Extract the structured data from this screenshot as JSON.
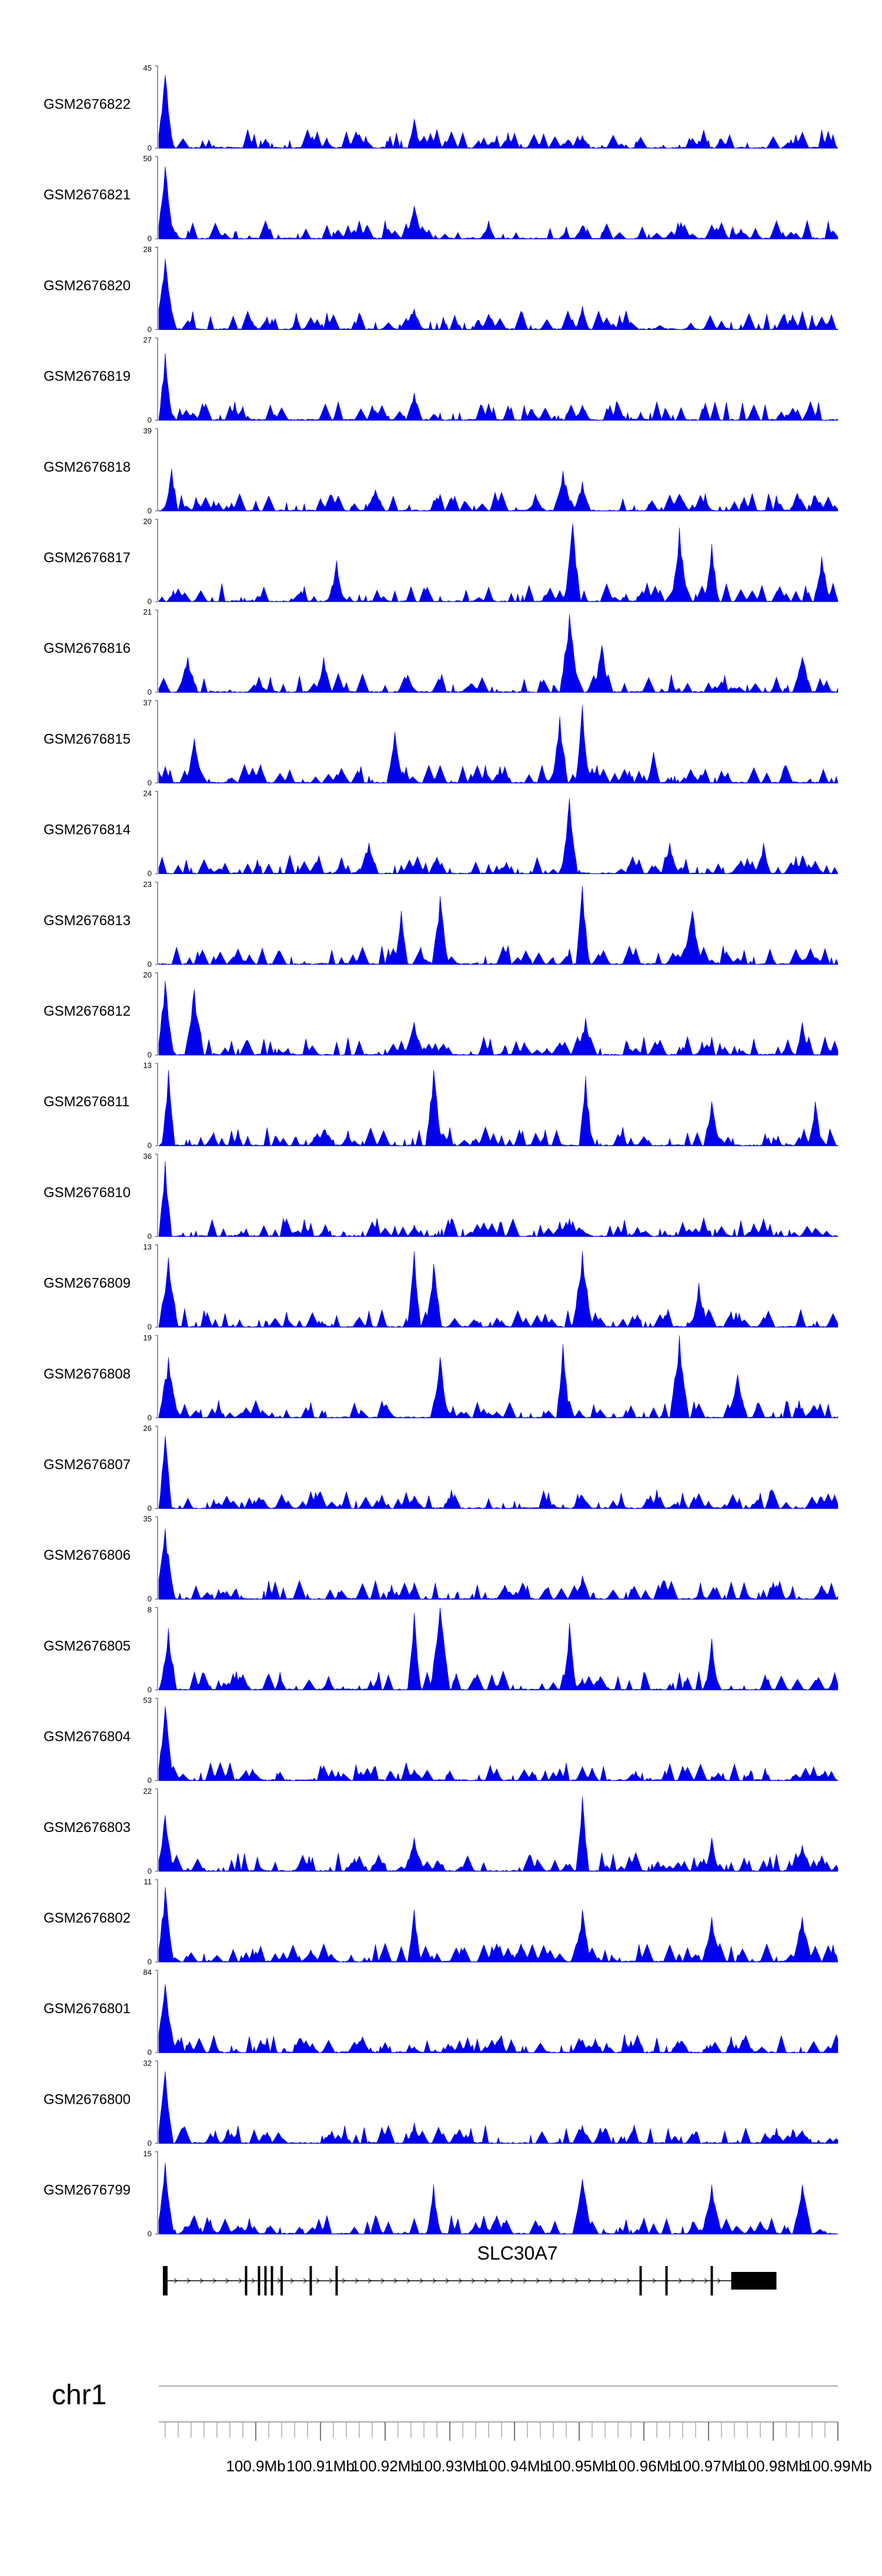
{
  "chart_data": {
    "type": "area",
    "colors": {
      "signal": "#0000ee",
      "axis": "#555555",
      "gene": "#000000",
      "ideogram": "#aaaaaa"
    },
    "x_range": [
      100.885,
      100.99
    ],
    "tracks": [
      {
        "name": "GSM2676822",
        "ymax": "45",
        "peaks": [
          [
            100.886,
            40
          ],
          [
            100.9245,
            16
          ],
          [
            100.9505,
            7
          ],
          [
            100.972,
            5
          ]
        ]
      },
      {
        "name": "GSM2676821",
        "ymax": "50",
        "peaks": [
          [
            100.886,
            44
          ],
          [
            100.9245,
            20
          ],
          [
            100.9505,
            8
          ],
          [
            100.975,
            6
          ]
        ]
      },
      {
        "name": "GSM2676820",
        "ymax": "28",
        "peaks": [
          [
            100.886,
            24
          ],
          [
            100.9245,
            7
          ],
          [
            100.9505,
            8
          ],
          [
            100.983,
            5
          ]
        ]
      },
      {
        "name": "GSM2676819",
        "ymax": "27",
        "peaks": [
          [
            100.886,
            22
          ],
          [
            100.9245,
            9
          ],
          [
            100.9505,
            5
          ],
          [
            100.983,
            4
          ]
        ]
      },
      {
        "name": "GSM2676818",
        "ymax": "39",
        "peaks": [
          [
            100.887,
            20
          ],
          [
            100.9185,
            10
          ],
          [
            100.9475,
            19
          ],
          [
            100.9505,
            14
          ],
          [
            100.9655,
            8
          ]
        ]
      },
      {
        "name": "GSM2676817",
        "ymax": "20",
        "peaks": [
          [
            100.9125,
            10
          ],
          [
            100.949,
            19
          ],
          [
            100.9655,
            18
          ],
          [
            100.9705,
            14
          ],
          [
            100.9875,
            11
          ]
        ]
      },
      {
        "name": "GSM2676816",
        "ymax": "21",
        "peaks": [
          [
            100.8895,
            9
          ],
          [
            100.9105,
            9
          ],
          [
            100.9485,
            20
          ],
          [
            100.9535,
            12
          ],
          [
            100.9845,
            9
          ]
        ]
      },
      {
        "name": "GSM2676815",
        "ymax": "37",
        "peaks": [
          [
            100.8905,
            20
          ],
          [
            100.9215,
            23
          ],
          [
            100.947,
            30
          ],
          [
            100.9505,
            35
          ],
          [
            100.9615,
            14
          ]
        ]
      },
      {
        "name": "GSM2676814",
        "ymax": "24",
        "peaks": [
          [
            100.9175,
            9
          ],
          [
            100.9485,
            22
          ],
          [
            100.964,
            9
          ],
          [
            100.9785,
            9
          ]
        ]
      },
      {
        "name": "GSM2676813",
        "ymax": "23",
        "peaks": [
          [
            100.9225,
            15
          ],
          [
            100.9285,
            19
          ],
          [
            100.9505,
            22
          ],
          [
            100.9675,
            15
          ]
        ]
      },
      {
        "name": "GSM2676812",
        "ymax": "20",
        "peaks": [
          [
            100.886,
            18
          ],
          [
            100.8905,
            16
          ],
          [
            100.9245,
            8
          ],
          [
            100.951,
            9
          ],
          [
            100.9845,
            8
          ]
        ]
      },
      {
        "name": "GSM2676811",
        "ymax": "13",
        "peaks": [
          [
            100.8865,
            12
          ],
          [
            100.9275,
            12
          ],
          [
            100.951,
            11
          ],
          [
            100.9705,
            7
          ],
          [
            100.9865,
            7
          ]
        ]
      },
      {
        "name": "GSM2676810",
        "ymax": "36",
        "peaks": [
          [
            100.886,
            33
          ],
          [
            100.9245,
            5
          ],
          [
            100.9505,
            3
          ]
        ]
      },
      {
        "name": "GSM2676809",
        "ymax": "13",
        "peaks": [
          [
            100.8865,
            11
          ],
          [
            100.9245,
            12
          ],
          [
            100.9275,
            10
          ],
          [
            100.9505,
            12
          ],
          [
            100.9685,
            7
          ]
        ]
      },
      {
        "name": "GSM2676808",
        "ymax": "19",
        "peaks": [
          [
            100.8865,
            14
          ],
          [
            100.9285,
            14
          ],
          [
            100.9475,
            17
          ],
          [
            100.9655,
            19
          ],
          [
            100.9745,
            10
          ]
        ]
      },
      {
        "name": "GSM2676807",
        "ymax": "26",
        "peaks": [
          [
            100.886,
            23
          ],
          [
            100.9245,
            4
          ],
          [
            100.9505,
            4
          ],
          [
            100.961,
            3
          ]
        ]
      },
      {
        "name": "GSM2676806",
        "ymax": "35",
        "peaks": [
          [
            100.886,
            30
          ],
          [
            100.9245,
            7
          ],
          [
            100.9385,
            6
          ],
          [
            100.9505,
            10
          ],
          [
            100.9875,
            6
          ]
        ]
      },
      {
        "name": "GSM2676805",
        "ymax": "8",
        "peaks": [
          [
            100.8865,
            6
          ],
          [
            100.9245,
            7.5
          ],
          [
            100.9285,
            8
          ],
          [
            100.9485,
            6.5
          ],
          [
            100.9705,
            5
          ]
        ]
      },
      {
        "name": "GSM2676804",
        "ymax": "53",
        "peaks": [
          [
            100.886,
            48
          ],
          [
            100.9245,
            7
          ],
          [
            100.9505,
            9
          ],
          [
            100.9715,
            5
          ]
        ]
      },
      {
        "name": "GSM2676803",
        "ymax": "22",
        "peaks": [
          [
            100.886,
            15
          ],
          [
            100.9245,
            9
          ],
          [
            100.9505,
            20
          ],
          [
            100.9705,
            9
          ],
          [
            100.9845,
            7
          ]
        ]
      },
      {
        "name": "GSM2676802",
        "ymax": "11",
        "peaks": [
          [
            100.886,
            10
          ],
          [
            100.9245,
            7
          ],
          [
            100.9505,
            7
          ],
          [
            100.9705,
            6
          ],
          [
            100.9845,
            6
          ]
        ]
      },
      {
        "name": "GSM2676801",
        "ymax": "84",
        "peaks": [
          [
            100.886,
            70
          ],
          [
            100.9245,
            6
          ],
          [
            100.9505,
            5
          ]
        ]
      },
      {
        "name": "GSM2676800",
        "ymax": "32",
        "peaks": [
          [
            100.886,
            28
          ],
          [
            100.9245,
            8
          ],
          [
            100.9505,
            7
          ],
          [
            100.9845,
            5
          ]
        ]
      },
      {
        "name": "GSM2676799",
        "ymax": "15",
        "peaks": [
          [
            100.886,
            13
          ],
          [
            100.9275,
            9
          ],
          [
            100.9505,
            10
          ],
          [
            100.9705,
            9
          ],
          [
            100.9845,
            9
          ]
        ]
      }
    ],
    "gene": {
      "name": "SLC30A7",
      "start": 100.886,
      "end": 100.9805,
      "thick_start": 100.9735,
      "thick_end": 100.9805,
      "exons": [
        100.886,
        100.8985,
        100.9005,
        100.9015,
        100.9025,
        100.904,
        100.9085,
        100.9125,
        100.9595,
        100.9635,
        100.9705
      ]
    },
    "chromosome": "chr1",
    "ticks": [
      "100.9Mb",
      "100.91Mb",
      "100.92Mb",
      "100.93Mb",
      "100.94Mb",
      "100.95Mb",
      "100.96Mb",
      "100.97Mb",
      "100.98Mb",
      "100.99Mb"
    ],
    "tick_values": [
      100.9,
      100.91,
      100.92,
      100.93,
      100.94,
      100.95,
      100.96,
      100.97,
      100.98,
      100.99
    ]
  }
}
